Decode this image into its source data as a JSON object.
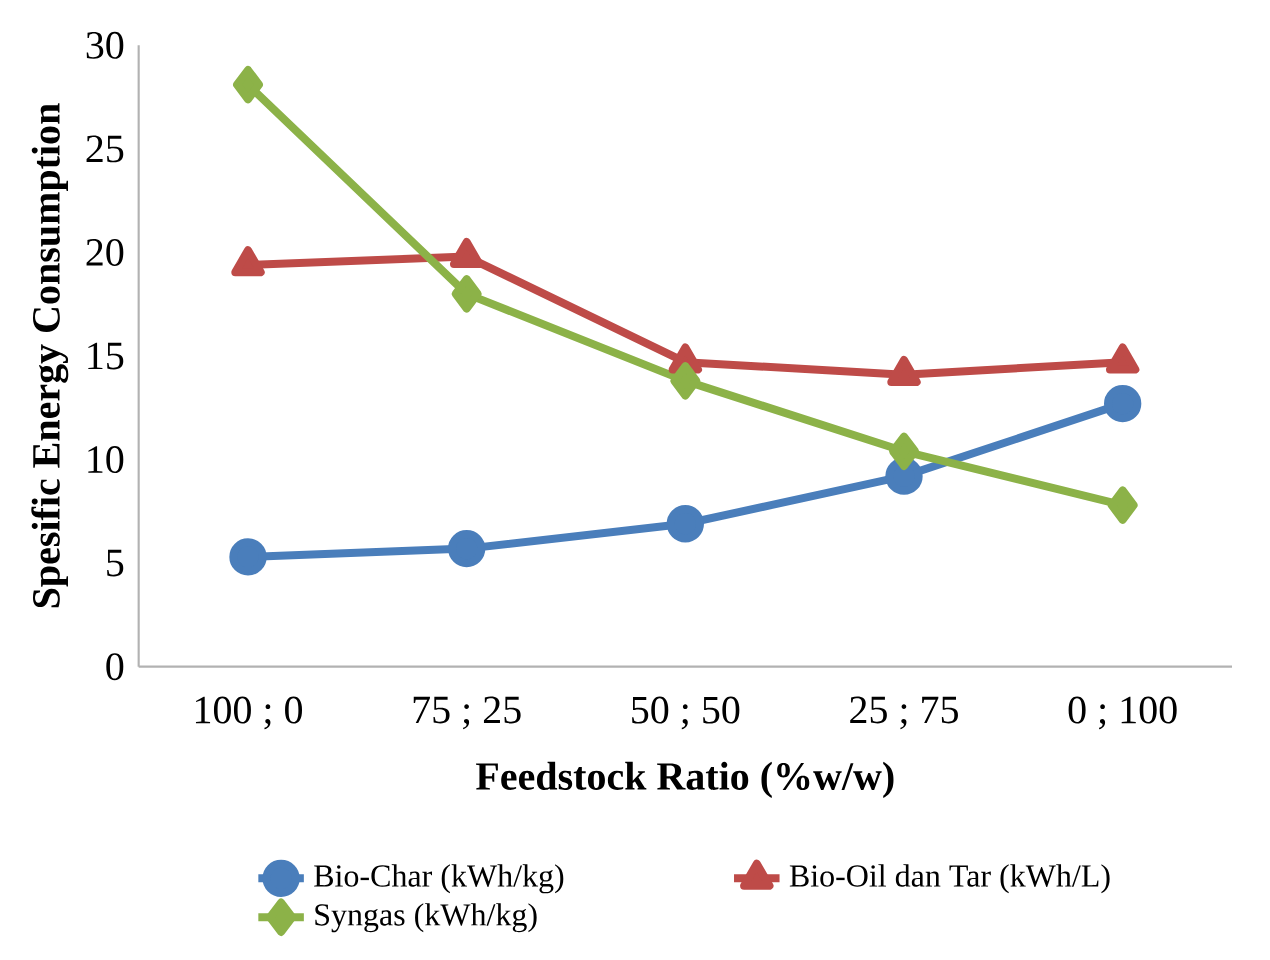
{
  "chart_data": {
    "type": "line",
    "xlabel": "Feedstock Ratio (%w/w)",
    "ylabel": "Spesific Energy Consumption",
    "categories": [
      "100 ; 0",
      "75 ; 25",
      "50 ; 50",
      "25 ; 75",
      "0 ; 100"
    ],
    "series": [
      {
        "name": "Bio-Char (kWh/kg)",
        "color": "#4a7ebb",
        "marker": "circle",
        "values": [
          5.3,
          5.7,
          6.9,
          9.2,
          12.7
        ]
      },
      {
        "name": "Bio-Oil dan Tar (kWh/L)",
        "color": "#be4b48",
        "marker": "triangle",
        "values": [
          19.4,
          19.8,
          14.7,
          14.1,
          14.7
        ]
      },
      {
        "name": "Syngas (kWh/kg)",
        "color": "#8cb248",
        "marker": "diamond",
        "values": [
          28.1,
          18.0,
          13.8,
          10.4,
          7.8
        ]
      }
    ],
    "ylim": [
      0,
      30
    ],
    "yticks": [
      0,
      5,
      10,
      15,
      20,
      25,
      30
    ],
    "grid": false,
    "legend": "bottom",
    "line_style": "solid"
  }
}
